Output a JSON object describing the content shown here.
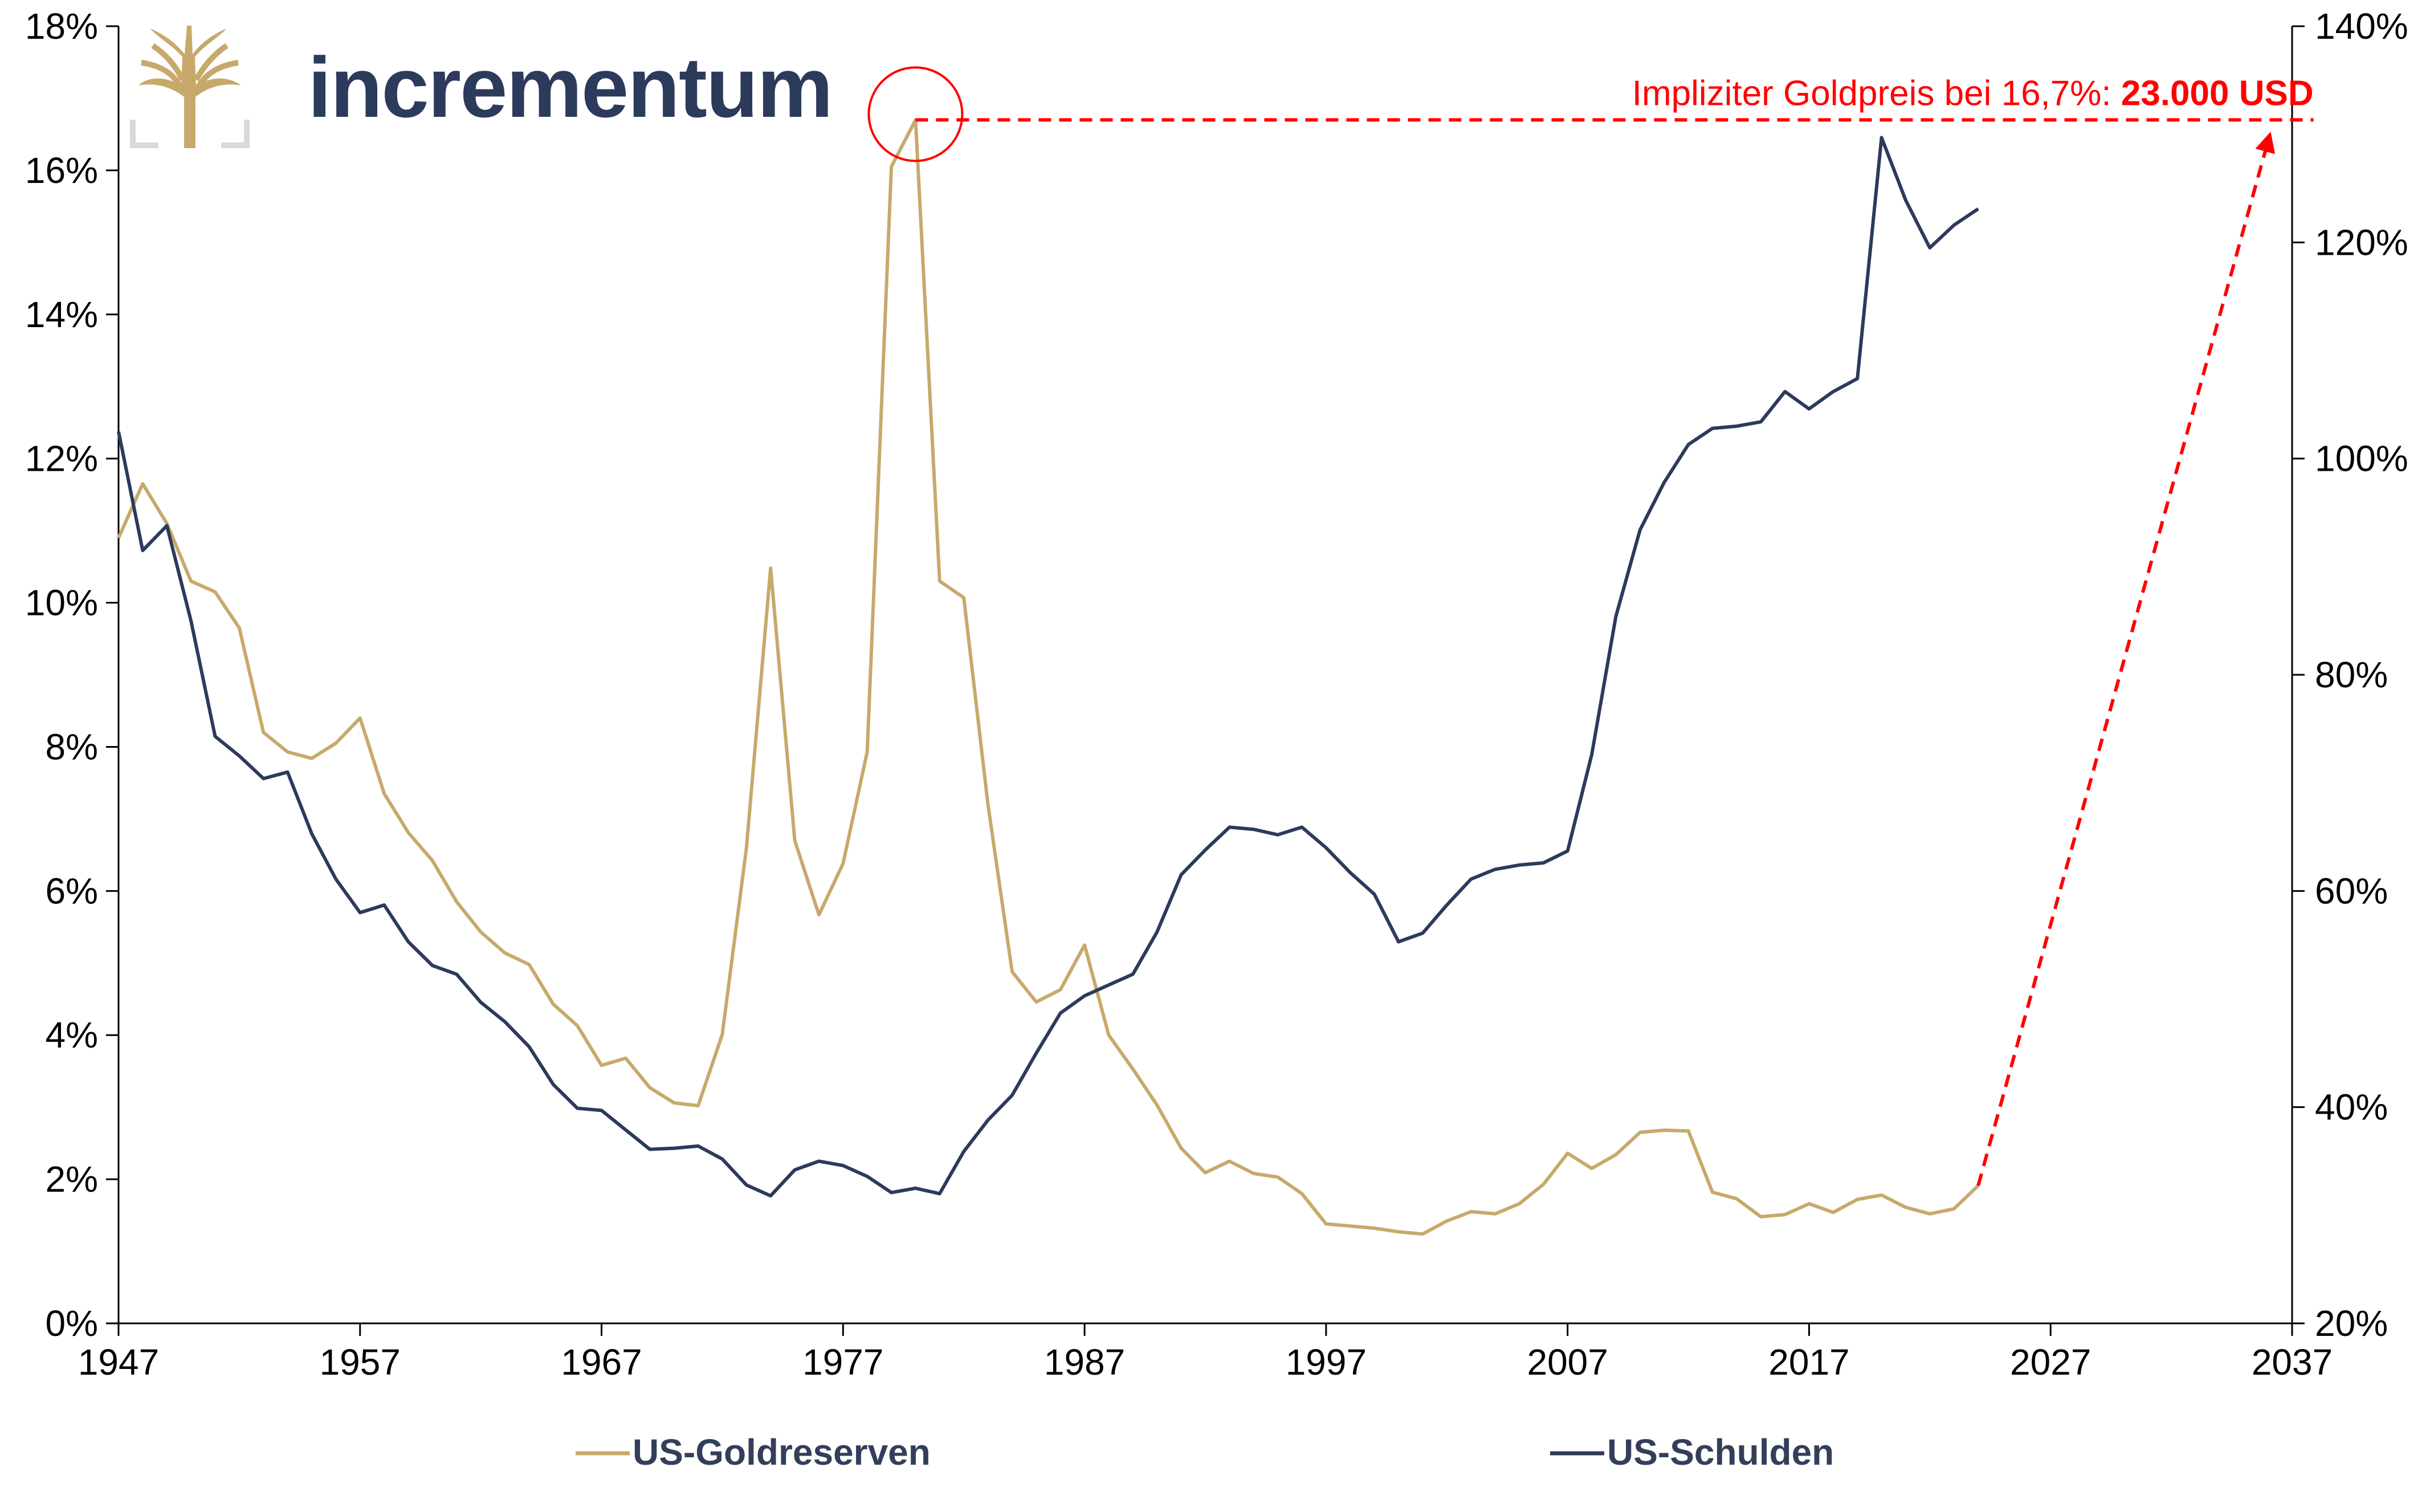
{
  "brand": {
    "name": "incrementum",
    "logo_icon": "tree-logo-icon",
    "logo_color": "#c7a96b",
    "text_color": "#2c3a5c"
  },
  "chart_data": {
    "type": "line",
    "title": "",
    "xlabel": "",
    "ylabel": "",
    "x_range": [
      1947,
      2037
    ],
    "x_ticks": [
      "1947",
      "1957",
      "1967",
      "1977",
      "1987",
      "1997",
      "2007",
      "2017",
      "2027",
      "2037"
    ],
    "y_left_range": [
      0,
      18
    ],
    "y_left_ticks": [
      "0%",
      "2%",
      "4%",
      "6%",
      "8%",
      "10%",
      "12%",
      "14%",
      "16%",
      "18%"
    ],
    "y_right_range": [
      20,
      140
    ],
    "y_right_ticks": [
      "20%",
      "40%",
      "60%",
      "80%",
      "100%",
      "120%",
      "140%"
    ],
    "grid": false,
    "legend_position": "bottom",
    "series": [
      {
        "name": "US-Goldreserven",
        "axis": "left",
        "color": "#c7a96b",
        "x": [
          1947,
          1948,
          1949,
          1950,
          1951,
          1952,
          1953,
          1954,
          1955,
          1956,
          1957,
          1958,
          1959,
          1960,
          1961,
          1962,
          1963,
          1964,
          1965,
          1966,
          1967,
          1968,
          1969,
          1970,
          1971,
          1972,
          1973,
          1974,
          1975,
          1976,
          1977,
          1978,
          1979,
          1980,
          1981,
          1982,
          1983,
          1984,
          1985,
          1986,
          1987,
          1988,
          1989,
          1990,
          1991,
          1992,
          1993,
          1994,
          1995,
          1996,
          1997,
          1998,
          1999,
          2000,
          2001,
          2002,
          2003,
          2004,
          2005,
          2006,
          2007,
          2008,
          2009,
          2010,
          2011,
          2012,
          2013,
          2014,
          2015,
          2016,
          2017,
          2018,
          2019,
          2020,
          2021,
          2022,
          2023,
          2024
        ],
        "values": [
          10.9,
          11.65,
          11.1,
          10.3,
          10.15,
          9.65,
          8.2,
          7.93,
          7.84,
          8.05,
          8.4,
          7.35,
          6.81,
          6.42,
          5.85,
          5.43,
          5.14,
          4.98,
          4.43,
          4.13,
          3.58,
          3.68,
          3.27,
          3.06,
          3.02,
          4.01,
          6.6,
          10.48,
          6.7,
          5.67,
          6.38,
          7.93,
          16.05,
          16.7,
          10.3,
          10.07,
          7.2,
          4.88,
          4.46,
          4.63,
          5.25,
          4.0,
          3.53,
          3.03,
          2.43,
          2.09,
          2.25,
          2.08,
          2.03,
          1.8,
          1.38,
          1.35,
          1.32,
          1.27,
          1.24,
          1.42,
          1.55,
          1.52,
          1.66,
          1.93,
          2.36,
          2.15,
          2.34,
          2.65,
          2.68,
          2.67,
          1.82,
          1.73,
          1.48,
          1.51,
          1.66,
          1.54,
          1.72,
          1.78,
          1.61,
          1.52,
          1.59,
          1.91
        ]
      },
      {
        "name": "US-Schulden",
        "axis": "right",
        "color": "#2c3a5c",
        "x": [
          1947,
          1948,
          1949,
          1950,
          1951,
          1952,
          1953,
          1954,
          1955,
          1956,
          1957,
          1958,
          1959,
          1960,
          1961,
          1962,
          1963,
          1964,
          1965,
          1966,
          1967,
          1968,
          1969,
          1970,
          1971,
          1972,
          1973,
          1974,
          1975,
          1976,
          1977,
          1978,
          1979,
          1980,
          1981,
          1982,
          1983,
          1984,
          1985,
          1986,
          1987,
          1988,
          1989,
          1990,
          1991,
          1992,
          1993,
          1994,
          1995,
          1996,
          1997,
          1998,
          1999,
          2000,
          2001,
          2002,
          2003,
          2004,
          2005,
          2006,
          2007,
          2008,
          2009,
          2010,
          2011,
          2012,
          2013,
          2014,
          2015,
          2016,
          2017,
          2018,
          2019,
          2020,
          2021,
          2022,
          2023,
          2024
        ],
        "values": [
          102.5,
          91.5,
          93.8,
          85.0,
          74.3,
          72.5,
          70.4,
          71.0,
          65.3,
          61.1,
          58.0,
          58.7,
          55.3,
          53.1,
          52.3,
          49.7,
          47.9,
          45.6,
          42.1,
          39.9,
          39.7,
          37.9,
          36.1,
          36.2,
          36.4,
          35.2,
          32.8,
          31.8,
          34.2,
          35.0,
          34.6,
          33.6,
          32.1,
          32.5,
          32.0,
          35.9,
          38.8,
          41.1,
          45.0,
          48.7,
          50.3,
          51.3,
          52.3,
          56.2,
          61.5,
          63.8,
          65.9,
          65.7,
          65.2,
          65.9,
          64.0,
          61.7,
          59.7,
          55.3,
          56.1,
          58.7,
          61.1,
          62.0,
          62.4,
          62.6,
          63.7,
          72.6,
          85.4,
          93.4,
          97.8,
          101.3,
          102.8,
          103.0,
          103.4,
          106.2,
          104.6,
          106.2,
          107.4,
          129.7,
          123.9,
          119.5,
          121.6,
          123.1
        ]
      },
      {
        "name": "",
        "axis": "left",
        "color": "#ff0000",
        "style": "dashed-arrow",
        "x": [
          2024,
          2036
        ],
        "values": [
          1.91,
          16.4
        ]
      }
    ],
    "annotations": [
      {
        "type": "circle",
        "x": 1980,
        "y": 16.7,
        "color": "#ff0000"
      },
      {
        "type": "hline-dashed",
        "x_start": 1980,
        "x_end": 2036,
        "y": 16.7,
        "color": "#ff0000",
        "text": "Impliziter Goldpreis bei 16,7%: ",
        "text_bold": "23.000 USD"
      }
    ]
  }
}
